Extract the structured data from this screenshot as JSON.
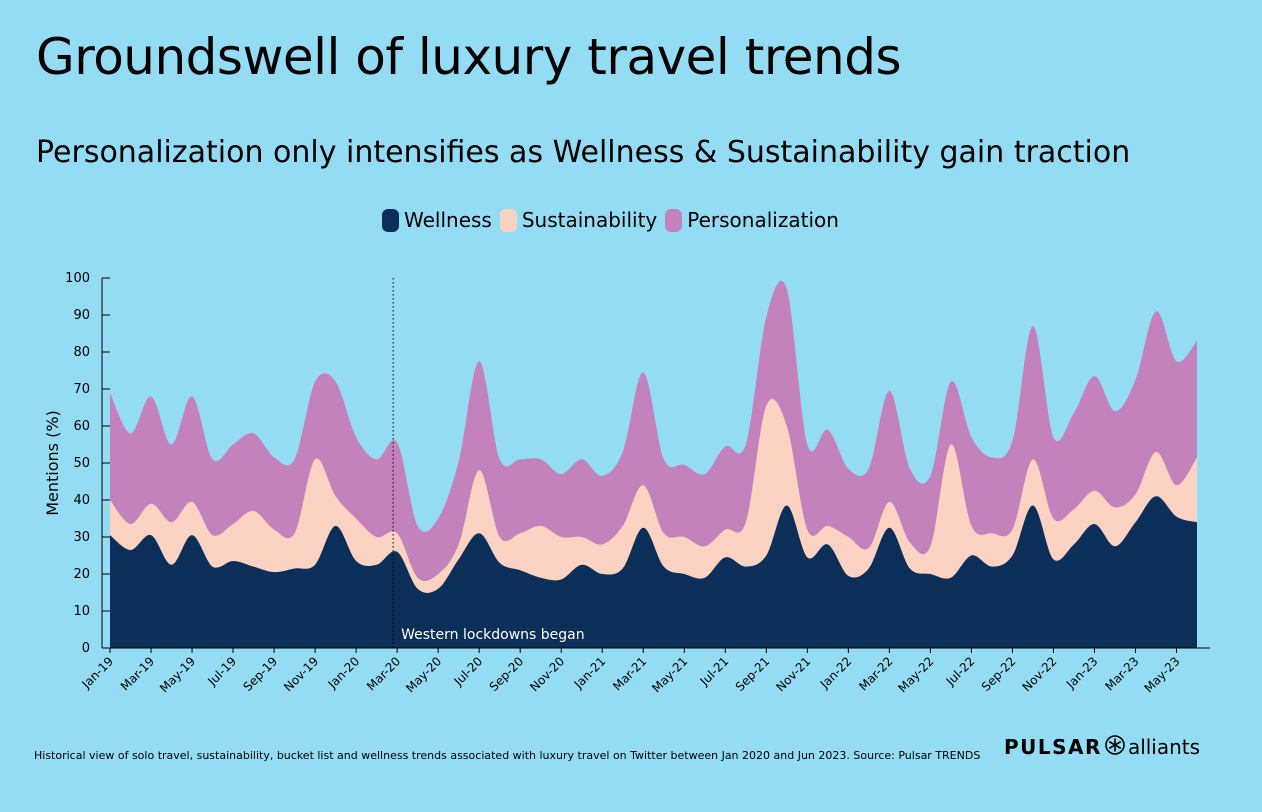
{
  "header": {
    "title": "Groundswell of luxury travel trends",
    "subtitle": "Personalization only intensifies as Wellness & Sustainability gain traction"
  },
  "footnote": "Historical view of solo travel, sustainability, bucket list and wellness trends associated with luxury travel on Twitter between Jan 2020 and Jun 2023. Source: Pulsar TRENDS",
  "brand": {
    "main": "PULSAR",
    "sub": "alliants",
    "icon": "asterisk-circle-icon"
  },
  "colors": {
    "background": "#94dcf4",
    "wellness": "#0c2f5a",
    "sustainability": "#fcd2c2",
    "personalization": "#c482bd"
  },
  "chart_data": {
    "type": "area",
    "stacked": true,
    "ylabel": "Mentions (%)",
    "ylim": [
      0,
      100
    ],
    "yticks": [
      0,
      10,
      20,
      30,
      40,
      50,
      60,
      70,
      80,
      90,
      100
    ],
    "legend_position": "top-center",
    "x": [
      "Jan-19",
      "Feb-19",
      "Mar-19",
      "Apr-19",
      "May-19",
      "Jun-19",
      "Jul-19",
      "Aug-19",
      "Sep-19",
      "Oct-19",
      "Nov-19",
      "Dec-19",
      "Jan-20",
      "Feb-20",
      "Mar-20",
      "Apr-20",
      "May-20",
      "Jun-20",
      "Jul-20",
      "Aug-20",
      "Sep-20",
      "Oct-20",
      "Nov-20",
      "Dec-20",
      "Jan-21",
      "Feb-21",
      "Mar-21",
      "Apr-21",
      "May-21",
      "Jun-21",
      "Jul-21",
      "Aug-21",
      "Sep-21",
      "Oct-21",
      "Nov-21",
      "Dec-21",
      "Jan-22",
      "Feb-22",
      "Mar-22",
      "Apr-22",
      "May-22",
      "Jun-22",
      "Jul-22",
      "Aug-22",
      "Sep-22",
      "Oct-22",
      "Nov-22",
      "Dec-22",
      "Jan-23",
      "Feb-23",
      "Mar-23",
      "Apr-23",
      "May-23",
      "Jun-23"
    ],
    "tick_labels": [
      "Jan-19",
      "Mar-19",
      "May-19",
      "Jul-19",
      "Sep-19",
      "Nov-19",
      "Jan-20",
      "Mar-20",
      "May-20",
      "Jul-20",
      "Sep-20",
      "Nov-20",
      "Jan-21",
      "Mar-21",
      "May-21",
      "Jul-21",
      "Sep-21",
      "Nov-21",
      "Jan-22",
      "Mar-22",
      "May-22",
      "Jul-22",
      "Sep-22",
      "Nov-22",
      "Jan-23",
      "Mar-23",
      "May-23"
    ],
    "series": [
      {
        "name": "Wellness",
        "values": [
          30.5,
          26.5,
          30.5,
          22.5,
          30.5,
          22,
          23.5,
          22,
          20.5,
          21.5,
          22.5,
          33,
          23.5,
          22.5,
          26,
          16,
          16,
          24,
          31,
          23,
          21,
          19,
          18.5,
          22.5,
          20,
          21.5,
          32.5,
          22,
          20,
          19,
          24.5,
          22,
          25,
          38.5,
          24.5,
          28,
          19.5,
          21.5,
          32.5,
          21.5,
          20,
          19,
          25,
          22,
          25,
          38.5,
          24,
          28,
          33.5,
          27.5,
          34,
          41,
          35.5,
          34
        ]
      },
      {
        "name": "Sustainability",
        "values": [
          40,
          33.5,
          39,
          34,
          39.5,
          30.5,
          33.5,
          37,
          32,
          31,
          51,
          41,
          35,
          30,
          31,
          19,
          20,
          28,
          48,
          30,
          31,
          33,
          30,
          30,
          28,
          33,
          44,
          31,
          30,
          27.5,
          32,
          34,
          65.5,
          60,
          32,
          33,
          30,
          27,
          39.5,
          28.5,
          27.5,
          55,
          33,
          31,
          32,
          51,
          35,
          37.5,
          42.5,
          38,
          41.5,
          53,
          44,
          51.5
        ]
      },
      {
        "name": "Personalization",
        "values": [
          69,
          58,
          68,
          55,
          68,
          51,
          55,
          58,
          51.5,
          51,
          72,
          72,
          57,
          51,
          55.5,
          33,
          35,
          50.5,
          77.5,
          51,
          51,
          51,
          47,
          51,
          46.5,
          53,
          74.5,
          51,
          49.5,
          47,
          54.5,
          55,
          89.5,
          97,
          55,
          59,
          48.5,
          48.5,
          69.5,
          48.5,
          46.5,
          72,
          57,
          51.5,
          56,
          87,
          57,
          63.5,
          73.5,
          64,
          72.5,
          91,
          77.5,
          83
        ]
      }
    ],
    "annotation": {
      "text": "Western lockdowns began",
      "x": "Mar-20",
      "style": "dotted-vertical-line"
    }
  }
}
